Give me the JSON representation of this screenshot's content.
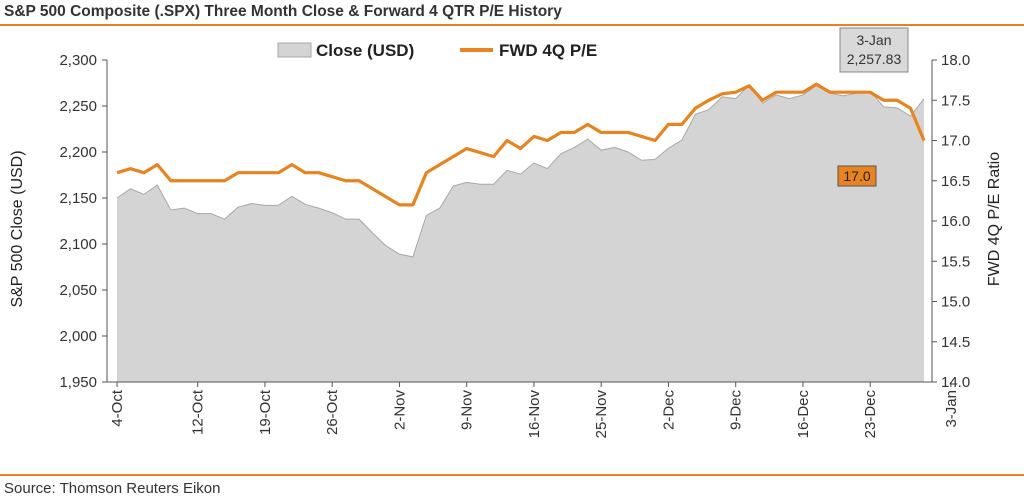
{
  "header": {
    "title": "S&P 500 Composite (.SPX) Three Month Close & Forward 4 QTR P/E History"
  },
  "footer": {
    "source": "Source: Thomson Reuters Eikon"
  },
  "colors": {
    "accent": "#e8831f",
    "area_fill": "#d4d4d4",
    "area_stroke": "#a8a8a8",
    "callout_close_bg": "#d9d9d9"
  },
  "chart_data": {
    "type": "area",
    "x_tick_labels": [
      "4-Oct",
      "12-Oct",
      "19-Oct",
      "26-Oct",
      "2-Nov",
      "9-Nov",
      "16-Nov",
      "25-Nov",
      "2-Dec",
      "9-Dec",
      "16-Dec",
      "23-Dec",
      "3-Jan"
    ],
    "x_tick_index": [
      0,
      6,
      11,
      16,
      21,
      26,
      31,
      36,
      41,
      46,
      51,
      56,
      62
    ],
    "ylabel_left": "S&P 500 Close (USD)",
    "ylabel_right": "FWD 4Q P/E Ratio",
    "ylim_left": [
      1950,
      2300
    ],
    "yticks_left": [
      "1,950",
      "2,000",
      "2,050",
      "2,100",
      "2,150",
      "2,200",
      "2,250",
      "2,300"
    ],
    "ylim_right": [
      14.0,
      18.0
    ],
    "yticks_right": [
      "14.0",
      "14.5",
      "15.0",
      "15.5",
      "16.0",
      "16.5",
      "17.0",
      "17.5",
      "18.0"
    ],
    "legend": [
      "Close (USD)",
      "FWD 4Q P/E"
    ],
    "legend_position": "top",
    "grid": false,
    "series": [
      {
        "name": "Close (USD)",
        "axis": "left",
        "style": "area",
        "values": [
          2150,
          2160,
          2154,
          2164,
          2137,
          2139,
          2133,
          2133,
          2127,
          2140,
          2144,
          2142,
          2142,
          2152,
          2143,
          2139,
          2134,
          2127,
          2127,
          2112,
          2098,
          2089,
          2086,
          2131,
          2139,
          2163,
          2167,
          2165,
          2165,
          2180,
          2176,
          2188,
          2182,
          2198,
          2205,
          2214,
          2202,
          2205,
          2200,
          2191,
          2192,
          2204,
          2213,
          2241,
          2246,
          2260,
          2258,
          2273,
          2253,
          2262,
          2258,
          2262,
          2272,
          2264,
          2261,
          2264,
          2266,
          2249,
          2248,
          2239,
          2258
        ]
      },
      {
        "name": "FWD 4Q P/E",
        "axis": "right",
        "style": "line",
        "values": [
          16.6,
          16.65,
          16.6,
          16.7,
          16.5,
          16.5,
          16.5,
          16.5,
          16.5,
          16.6,
          16.6,
          16.6,
          16.6,
          16.7,
          16.6,
          16.6,
          16.55,
          16.5,
          16.5,
          16.4,
          16.3,
          16.2,
          16.2,
          16.6,
          16.7,
          16.8,
          16.9,
          16.85,
          16.8,
          17.0,
          16.9,
          17.05,
          17.0,
          17.1,
          17.1,
          17.2,
          17.1,
          17.1,
          17.1,
          17.05,
          17.0,
          17.2,
          17.2,
          17.4,
          17.5,
          17.58,
          17.6,
          17.68,
          17.5,
          17.6,
          17.6,
          17.6,
          17.7,
          17.6,
          17.6,
          17.6,
          17.6,
          17.5,
          17.5,
          17.4,
          17.0
        ]
      }
    ],
    "annotations": {
      "close_label_date": "3-Jan",
      "close_label_value": "2,257.83",
      "pe_label_value": "17.0"
    }
  }
}
